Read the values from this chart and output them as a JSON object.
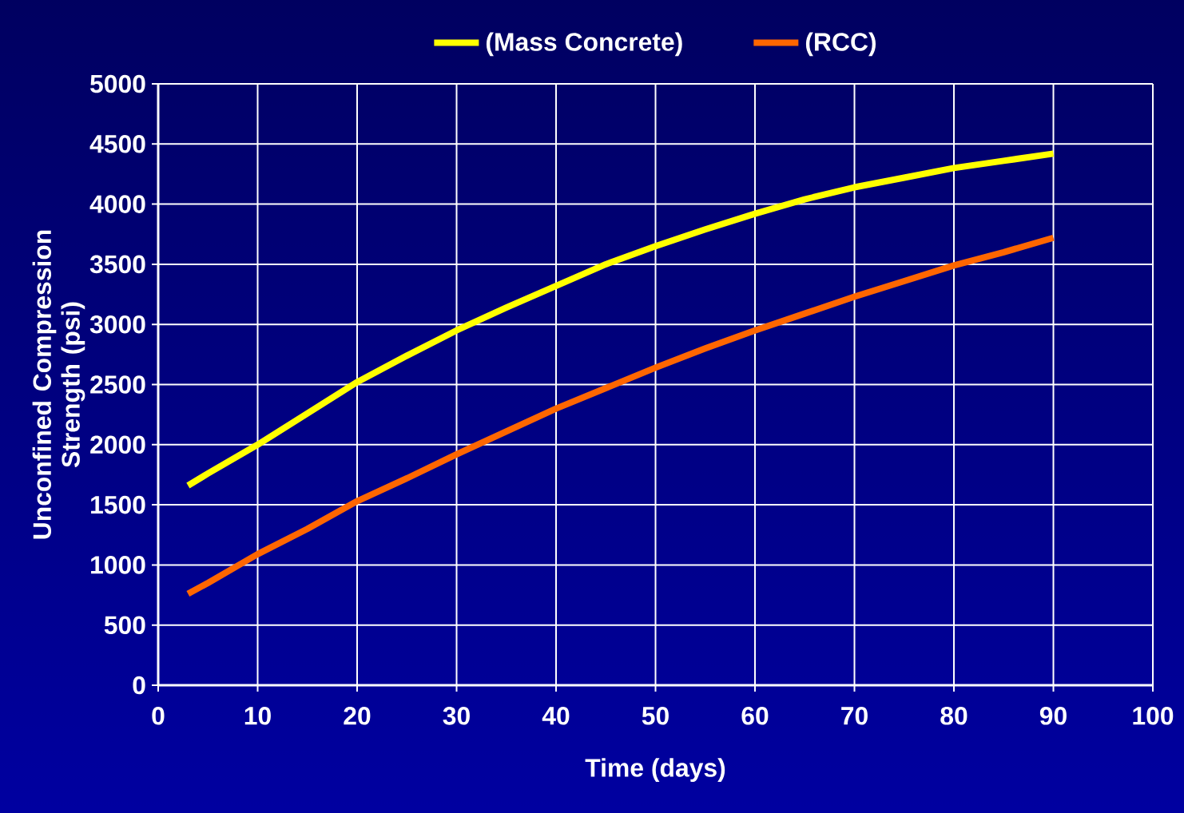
{
  "chart_data": {
    "type": "line",
    "xlabel": "Time (days)",
    "ylabel": "Unconfined Compression Strength (psi)",
    "xlim": [
      0,
      100
    ],
    "xticks": [
      0,
      10,
      20,
      30,
      40,
      50,
      60,
      70,
      80,
      90,
      100
    ],
    "ylim": [
      0,
      5000
    ],
    "yticks": [
      0,
      500,
      1000,
      1500,
      2000,
      2500,
      3000,
      3500,
      4000,
      4500,
      5000
    ],
    "grid": true,
    "legend": "top",
    "marker": "none",
    "line_style": "solid",
    "x": [
      3,
      5,
      10,
      15,
      20,
      25,
      30,
      35,
      40,
      45,
      50,
      55,
      60,
      65,
      70,
      75,
      80,
      85,
      90
    ],
    "series": [
      {
        "name": "(Mass Concrete)",
        "color": "#ffff00",
        "values": [
          1660,
          1760,
          2000,
          2260,
          2520,
          2740,
          2950,
          3140,
          3320,
          3500,
          3650,
          3790,
          3920,
          4040,
          4140,
          4220,
          4300,
          4360,
          4420
        ]
      },
      {
        "name": "(RCC)",
        "color": "#ff6600",
        "values": [
          760,
          850,
          1090,
          1300,
          1530,
          1720,
          1920,
          2110,
          2300,
          2470,
          2640,
          2800,
          2950,
          3090,
          3230,
          3360,
          3490,
          3600,
          3720
        ]
      }
    ]
  }
}
